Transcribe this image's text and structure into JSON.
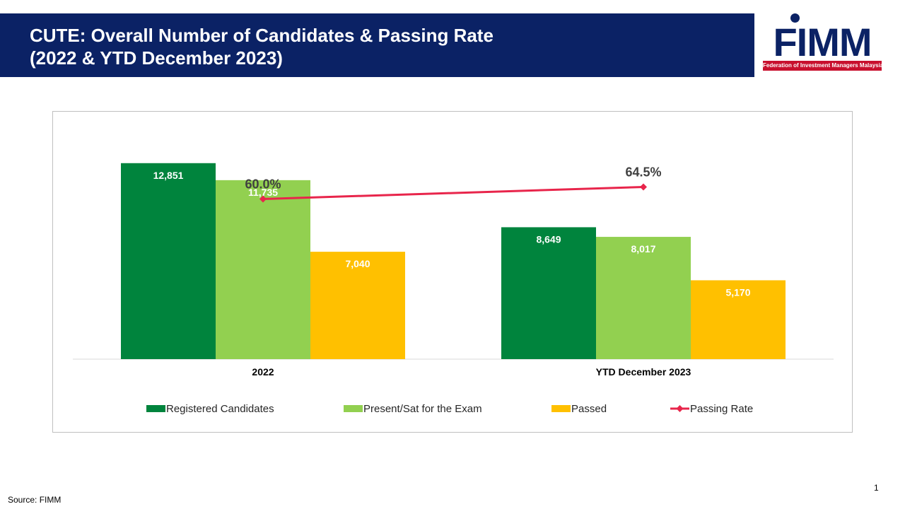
{
  "header": {
    "title_line1": "CUTE: Overall Number of Candidates & Passing Rate",
    "title_line2": "(2022 & YTD December 2023)"
  },
  "logo": {
    "wordmark": "FIMM",
    "tagline": "Federation of Investment Managers Malaysia"
  },
  "chart_data": {
    "type": "bar",
    "categories": [
      "2022",
      "YTD December 2023"
    ],
    "series": [
      {
        "name": "Registered Candidates",
        "type": "bar",
        "color": "#00843d",
        "values": [
          12851,
          8649
        ],
        "labels": [
          "12,851",
          "8,649"
        ]
      },
      {
        "name": "Present/Sat for the Exam",
        "type": "bar",
        "color": "#92d050",
        "values": [
          11735,
          8017
        ],
        "labels": [
          "11,735",
          "8,017"
        ]
      },
      {
        "name": "Passed",
        "type": "bar",
        "color": "#ffc000",
        "values": [
          7040,
          5170
        ],
        "labels": [
          "7,040",
          "5,170"
        ]
      },
      {
        "name": "Passing Rate",
        "type": "line",
        "color": "#e8254b",
        "values": [
          60.0,
          64.5
        ],
        "labels": [
          "60.0%",
          "64.5%"
        ]
      }
    ],
    "ylim": [
      0,
      14000
    ],
    "y2lim": [
      0,
      80
    ],
    "grid": false,
    "legend": "bottom"
  },
  "footer": {
    "source": "Source: FIMM",
    "page_number": "1"
  }
}
